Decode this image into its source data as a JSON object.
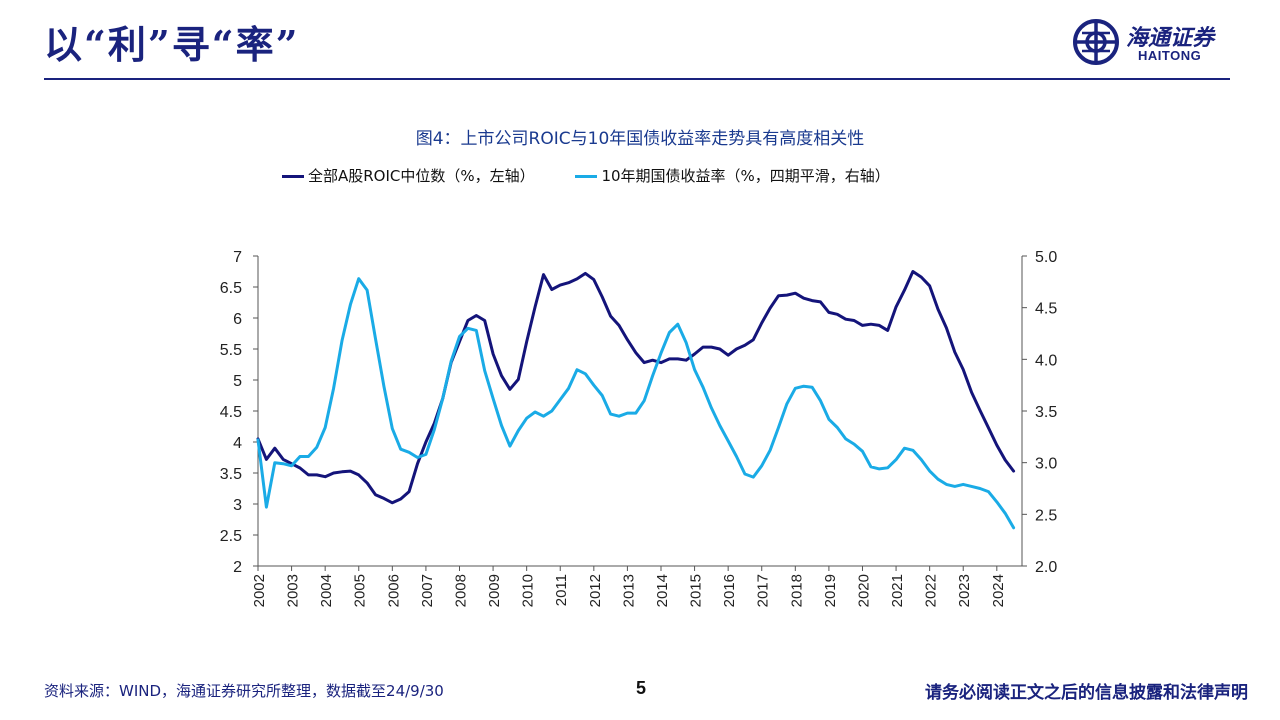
{
  "slide": {
    "title": "以“利”寻“率”",
    "page_number": "5",
    "source": "资料来源：WIND，海通证券研究所整理，数据截至24/9/30",
    "disclaimer": "请务必阅读正文之后的信息披露和法律声明"
  },
  "logo": {
    "cn": "海通证券",
    "en": "HAITONG",
    "color": "#1a237e"
  },
  "chart_data": {
    "type": "line",
    "title": "图4：上市公司ROIC与10年国债收益率走势具有高度相关性",
    "x_range": [
      2002.0,
      2024.75
    ],
    "x_ticks": [
      "2002",
      "2003",
      "2004",
      "2005",
      "2006",
      "2007",
      "2008",
      "2009",
      "2010",
      "2011",
      "2012",
      "2013",
      "2014",
      "2015",
      "2016",
      "2017",
      "2018",
      "2019",
      "2020",
      "2021",
      "2022",
      "2023",
      "2024"
    ],
    "left_axis": {
      "range": [
        2,
        7
      ],
      "ticks": [
        "2",
        "2.5",
        "3",
        "3.5",
        "4",
        "4.5",
        "5",
        "5.5",
        "6",
        "6.5",
        "7"
      ]
    },
    "right_axis": {
      "range": [
        2.0,
        5.0
      ],
      "ticks": [
        "2.0",
        "2.5",
        "3.0",
        "3.5",
        "4.0",
        "4.5",
        "5.0"
      ]
    },
    "grid": false,
    "legend_position": "top",
    "series": [
      {
        "name": "全部A股ROIC中位数（%，左轴）",
        "axis": "left",
        "color": "#14147a",
        "points": [
          [
            2002.0,
            4.05
          ],
          [
            2002.25,
            3.72
          ],
          [
            2002.5,
            3.9
          ],
          [
            2002.75,
            3.72
          ],
          [
            2003.0,
            3.65
          ],
          [
            2003.25,
            3.58
          ],
          [
            2003.5,
            3.47
          ],
          [
            2003.75,
            3.47
          ],
          [
            2004.0,
            3.44
          ],
          [
            2004.25,
            3.5
          ],
          [
            2004.5,
            3.52
          ],
          [
            2004.75,
            3.53
          ],
          [
            2005.0,
            3.47
          ],
          [
            2005.25,
            3.34
          ],
          [
            2005.5,
            3.15
          ],
          [
            2005.75,
            3.09
          ],
          [
            2006.0,
            3.02
          ],
          [
            2006.25,
            3.08
          ],
          [
            2006.5,
            3.2
          ],
          [
            2006.75,
            3.65
          ],
          [
            2007.0,
            4.0
          ],
          [
            2007.25,
            4.3
          ],
          [
            2007.5,
            4.7
          ],
          [
            2007.75,
            5.28
          ],
          [
            2008.0,
            5.62
          ],
          [
            2008.25,
            5.96
          ],
          [
            2008.5,
            6.04
          ],
          [
            2008.75,
            5.96
          ],
          [
            2009.0,
            5.42
          ],
          [
            2009.25,
            5.07
          ],
          [
            2009.5,
            4.85
          ],
          [
            2009.75,
            5.01
          ],
          [
            2010.0,
            5.62
          ],
          [
            2010.25,
            6.18
          ],
          [
            2010.5,
            6.7
          ],
          [
            2010.75,
            6.46
          ],
          [
            2011.0,
            6.53
          ],
          [
            2011.25,
            6.57
          ],
          [
            2011.5,
            6.63
          ],
          [
            2011.75,
            6.72
          ],
          [
            2012.0,
            6.62
          ],
          [
            2012.25,
            6.34
          ],
          [
            2012.5,
            6.03
          ],
          [
            2012.75,
            5.88
          ],
          [
            2013.0,
            5.65
          ],
          [
            2013.25,
            5.44
          ],
          [
            2013.5,
            5.28
          ],
          [
            2013.75,
            5.32
          ],
          [
            2014.0,
            5.28
          ],
          [
            2014.25,
            5.34
          ],
          [
            2014.5,
            5.34
          ],
          [
            2014.75,
            5.32
          ],
          [
            2015.0,
            5.42
          ],
          [
            2015.25,
            5.53
          ],
          [
            2015.5,
            5.53
          ],
          [
            2015.75,
            5.5
          ],
          [
            2016.0,
            5.4
          ],
          [
            2016.25,
            5.5
          ],
          [
            2016.5,
            5.56
          ],
          [
            2016.75,
            5.65
          ],
          [
            2017.0,
            5.92
          ],
          [
            2017.25,
            6.16
          ],
          [
            2017.5,
            6.36
          ],
          [
            2017.75,
            6.37
          ],
          [
            2018.0,
            6.4
          ],
          [
            2018.25,
            6.32
          ],
          [
            2018.5,
            6.28
          ],
          [
            2018.75,
            6.26
          ],
          [
            2019.0,
            6.09
          ],
          [
            2019.25,
            6.06
          ],
          [
            2019.5,
            5.98
          ],
          [
            2019.75,
            5.96
          ],
          [
            2020.0,
            5.88
          ],
          [
            2020.25,
            5.9
          ],
          [
            2020.5,
            5.88
          ],
          [
            2020.75,
            5.8
          ],
          [
            2021.0,
            6.18
          ],
          [
            2021.25,
            6.45
          ],
          [
            2021.5,
            6.75
          ],
          [
            2021.75,
            6.66
          ],
          [
            2022.0,
            6.52
          ],
          [
            2022.25,
            6.14
          ],
          [
            2022.5,
            5.84
          ],
          [
            2022.75,
            5.45
          ],
          [
            2023.0,
            5.17
          ],
          [
            2023.25,
            4.8
          ],
          [
            2023.5,
            4.51
          ],
          [
            2023.75,
            4.23
          ],
          [
            2024.0,
            3.95
          ],
          [
            2024.25,
            3.71
          ],
          [
            2024.5,
            3.53
          ]
        ]
      },
      {
        "name": "10年期国债收益率（%，四期平滑，右轴）",
        "axis": "right",
        "color": "#1aabe6",
        "points": [
          [
            2002.0,
            3.22
          ],
          [
            2002.25,
            2.57
          ],
          [
            2002.5,
            3.0
          ],
          [
            2002.75,
            2.99
          ],
          [
            2003.0,
            2.97
          ],
          [
            2003.25,
            3.06
          ],
          [
            2003.5,
            3.06
          ],
          [
            2003.75,
            3.15
          ],
          [
            2004.0,
            3.34
          ],
          [
            2004.25,
            3.72
          ],
          [
            2004.5,
            4.18
          ],
          [
            2004.75,
            4.53
          ],
          [
            2005.0,
            4.78
          ],
          [
            2005.25,
            4.67
          ],
          [
            2005.5,
            4.2
          ],
          [
            2005.75,
            3.74
          ],
          [
            2006.0,
            3.33
          ],
          [
            2006.25,
            3.13
          ],
          [
            2006.5,
            3.1
          ],
          [
            2006.75,
            3.05
          ],
          [
            2007.0,
            3.08
          ],
          [
            2007.25,
            3.32
          ],
          [
            2007.5,
            3.62
          ],
          [
            2007.75,
            3.98
          ],
          [
            2008.0,
            4.22
          ],
          [
            2008.25,
            4.3
          ],
          [
            2008.5,
            4.28
          ],
          [
            2008.75,
            3.89
          ],
          [
            2009.0,
            3.62
          ],
          [
            2009.25,
            3.36
          ],
          [
            2009.5,
            3.16
          ],
          [
            2009.75,
            3.31
          ],
          [
            2010.0,
            3.43
          ],
          [
            2010.25,
            3.49
          ],
          [
            2010.5,
            3.45
          ],
          [
            2010.75,
            3.5
          ],
          [
            2011.0,
            3.61
          ],
          [
            2011.25,
            3.72
          ],
          [
            2011.5,
            3.9
          ],
          [
            2011.75,
            3.86
          ],
          [
            2012.0,
            3.75
          ],
          [
            2012.25,
            3.65
          ],
          [
            2012.5,
            3.47
          ],
          [
            2012.75,
            3.45
          ],
          [
            2013.0,
            3.48
          ],
          [
            2013.25,
            3.48
          ],
          [
            2013.5,
            3.6
          ],
          [
            2013.75,
            3.84
          ],
          [
            2014.0,
            4.06
          ],
          [
            2014.25,
            4.26
          ],
          [
            2014.5,
            4.34
          ],
          [
            2014.75,
            4.16
          ],
          [
            2015.0,
            3.9
          ],
          [
            2015.25,
            3.73
          ],
          [
            2015.5,
            3.53
          ],
          [
            2015.75,
            3.36
          ],
          [
            2016.0,
            3.21
          ],
          [
            2016.25,
            3.06
          ],
          [
            2016.5,
            2.89
          ],
          [
            2016.75,
            2.86
          ],
          [
            2017.0,
            2.97
          ],
          [
            2017.25,
            3.12
          ],
          [
            2017.5,
            3.34
          ],
          [
            2017.75,
            3.57
          ],
          [
            2018.0,
            3.72
          ],
          [
            2018.25,
            3.74
          ],
          [
            2018.5,
            3.73
          ],
          [
            2018.75,
            3.6
          ],
          [
            2019.0,
            3.42
          ],
          [
            2019.25,
            3.34
          ],
          [
            2019.5,
            3.23
          ],
          [
            2019.75,
            3.18
          ],
          [
            2020.0,
            3.11
          ],
          [
            2020.25,
            2.96
          ],
          [
            2020.5,
            2.94
          ],
          [
            2020.75,
            2.95
          ],
          [
            2021.0,
            3.03
          ],
          [
            2021.25,
            3.14
          ],
          [
            2021.5,
            3.12
          ],
          [
            2021.75,
            3.03
          ],
          [
            2022.0,
            2.92
          ],
          [
            2022.25,
            2.84
          ],
          [
            2022.5,
            2.79
          ],
          [
            2022.75,
            2.77
          ],
          [
            2023.0,
            2.79
          ],
          [
            2023.25,
            2.77
          ],
          [
            2023.5,
            2.75
          ],
          [
            2023.75,
            2.72
          ],
          [
            2024.0,
            2.62
          ],
          [
            2024.25,
            2.51
          ],
          [
            2024.5,
            2.37
          ]
        ]
      }
    ]
  }
}
